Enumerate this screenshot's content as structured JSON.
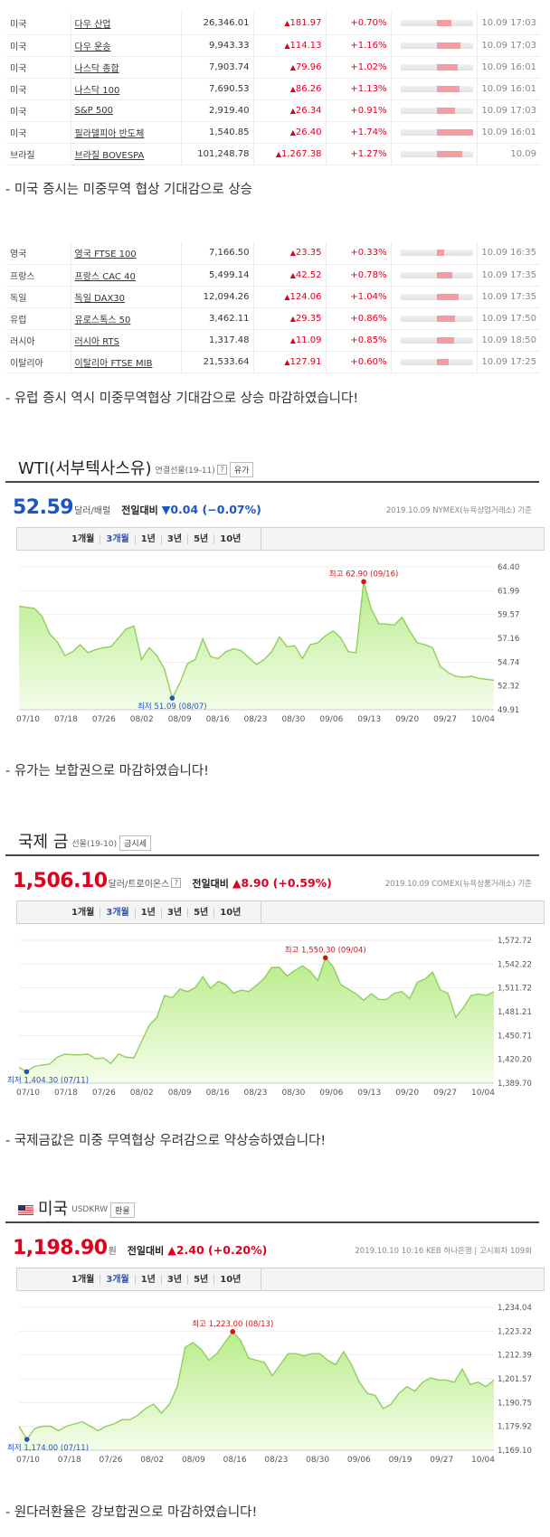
{
  "us_indices": [
    {
      "country": "미국",
      "name": "다우 산업",
      "price": "26,346.01",
      "change": "181.97",
      "rate": "+0.70%",
      "bar": 0.2,
      "time": "10.09 17:03"
    },
    {
      "country": "미국",
      "name": "다우 운송",
      "price": "9,943.33",
      "change": "114.13",
      "rate": "+1.16%",
      "bar": 0.33,
      "time": "10.09 17:03"
    },
    {
      "country": "미국",
      "name": "나스닥 종합",
      "price": "7,903.74",
      "change": "79.96",
      "rate": "+1.02%",
      "bar": 0.29,
      "time": "10.09 16:01"
    },
    {
      "country": "미국",
      "name": "나스닥 100",
      "price": "7,690.53",
      "change": "86.26",
      "rate": "+1.13%",
      "bar": 0.32,
      "time": "10.09 16:01"
    },
    {
      "country": "미국",
      "name": "S&P 500",
      "price": "2,919.40",
      "change": "26.34",
      "rate": "+0.91%",
      "bar": 0.26,
      "time": "10.09 17:03"
    },
    {
      "country": "미국",
      "name": "필라델피아 반도체",
      "price": "1,540.85",
      "change": "26.40",
      "rate": "+1.74%",
      "bar": 0.5,
      "time": "10.09 16:01"
    },
    {
      "country": "브라질",
      "name": "브라질 BOVESPA",
      "price": "101,248.78",
      "change": "1,267.38",
      "rate": "+1.27%",
      "bar": 0.36,
      "time": "10.09"
    }
  ],
  "caption_us": "- 미국 증시는 미중무역 협상 기대감으로 상승",
  "eu_indices": [
    {
      "country": "영국",
      "name": "영국 FTSE 100",
      "price": "7,166.50",
      "change": "23.35",
      "rate": "+0.33%",
      "bar": 0.1,
      "time": "10.09 16:35"
    },
    {
      "country": "프랑스",
      "name": "프랑스 CAC 40",
      "price": "5,499.14",
      "change": "42.52",
      "rate": "+0.78%",
      "bar": 0.22,
      "time": "10.09 17:35"
    },
    {
      "country": "독일",
      "name": "독일 DAX30",
      "price": "12,094.26",
      "change": "124.06",
      "rate": "+1.04%",
      "bar": 0.3,
      "time": "10.09 17:35"
    },
    {
      "country": "유럽",
      "name": "유로스톡스 50",
      "price": "3,462.11",
      "change": "29.35",
      "rate": "+0.86%",
      "bar": 0.25,
      "time": "10.09 17:50"
    },
    {
      "country": "러시아",
      "name": "러시아 RTS",
      "price": "1,317.48",
      "change": "11.09",
      "rate": "+0.85%",
      "bar": 0.24,
      "time": "10.09 18:50"
    },
    {
      "country": "이탈리아",
      "name": "이탈리아 FTSE MIB",
      "price": "21,533.64",
      "change": "127.91",
      "rate": "+0.60%",
      "bar": 0.17,
      "time": "10.09 17:25"
    }
  ],
  "caption_eu": "- 유럽 증시 역시 미중무역협상 기대감으로 상승 마감하였습니다!",
  "widgets": [
    {
      "title": "WTI(서부텍사스유)",
      "subtitle": "연결선물(19-11)",
      "help": "?",
      "chip": "유가",
      "price": "52.59",
      "unit": "달러/배럴",
      "cmp_label": "전일대비",
      "cmp": "▼0.04 (−0.07%)",
      "price_color": "#1a56c8",
      "cmp_color": "#1a56c8",
      "source": "2019.10.09  NYMEX(뉴욕상업거래소) 기준",
      "tabs": [
        "1개월",
        "3개월",
        "1년",
        "3년",
        "5년",
        "10년"
      ],
      "active_tab": 1,
      "high_label": "최고 62.90 (09/16)",
      "low_label": "최저 51.09 (08/07)",
      "chart_data": {
        "type": "area",
        "x_ticks": [
          "07/10",
          "07/18",
          "07/26",
          "08/02",
          "08/09",
          "08/16",
          "08/23",
          "08/30",
          "09/06",
          "09/13",
          "09/20",
          "09/27",
          "10/04"
        ],
        "y_ticks": [
          "64.40",
          "61.99",
          "59.57",
          "57.16",
          "54.74",
          "52.32",
          "49.91"
        ],
        "ylim": [
          49.91,
          64.4
        ],
        "values": [
          60.4,
          60.3,
          60.2,
          59.4,
          57.6,
          56.8,
          55.4,
          55.8,
          56.5,
          55.7,
          56.0,
          56.2,
          56.3,
          57.2,
          58.1,
          58.4,
          55.0,
          56.2,
          55.4,
          54.0,
          51.09,
          52.6,
          54.6,
          55.0,
          57.1,
          55.3,
          55.1,
          55.8,
          56.1,
          55.9,
          55.2,
          54.5,
          55.0,
          55.8,
          57.3,
          56.3,
          56.4,
          55.1,
          56.5,
          56.7,
          57.4,
          57.9,
          57.2,
          55.8,
          55.7,
          62.9,
          60.1,
          58.6,
          58.6,
          58.5,
          59.3,
          57.9,
          56.7,
          56.5,
          56.2,
          54.3,
          53.7,
          53.3,
          53.2,
          53.3,
          53.1,
          53.0,
          52.9
        ],
        "high_index": 45,
        "low_index": 20
      }
    },
    {
      "title": "국제 금",
      "subtitle": "선물(19-10)",
      "chip": "금시세",
      "price": "1,506.10",
      "unit": "달러/트로이온스",
      "help": "?",
      "cmp_label": "전일대비",
      "cmp": "▲8.90 (+0.59%)",
      "price_color": "#e0001e",
      "cmp_color": "#e0001e",
      "source": "2019.10.09  COMEX(뉴욕상품거래소) 기준",
      "tabs": [
        "1개월",
        "3개월",
        "1년",
        "3년",
        "5년",
        "10년"
      ],
      "active_tab": 1,
      "high_label": "최고 1,550.30 (09/04)",
      "low_label": "최저 1,404.30 (07/11)",
      "chart_data": {
        "type": "area",
        "x_ticks": [
          "07/10",
          "07/18",
          "07/26",
          "08/02",
          "08/09",
          "08/16",
          "08/23",
          "08/30",
          "09/06",
          "09/13",
          "09/20",
          "09/27",
          "10/04"
        ],
        "y_ticks": [
          "1,572.72",
          "1,542.22",
          "1,511.72",
          "1,481.21",
          "1,450.71",
          "1,420.20",
          "1,389.70"
        ],
        "ylim": [
          1389.7,
          1572.72
        ],
        "values": [
          1410,
          1404.3,
          1411,
          1413,
          1414,
          1423,
          1427,
          1426,
          1426,
          1427,
          1421,
          1422,
          1415,
          1427,
          1423,
          1422,
          1443,
          1464,
          1474,
          1502,
          1499,
          1510,
          1507,
          1512,
          1526,
          1511,
          1520,
          1516,
          1505,
          1509,
          1507,
          1515,
          1524,
          1538,
          1538,
          1527,
          1534,
          1540,
          1533,
          1521,
          1550.3,
          1539,
          1516,
          1510,
          1504,
          1496,
          1504,
          1497,
          1497,
          1505,
          1507,
          1498,
          1519,
          1523,
          1532,
          1509,
          1505,
          1474,
          1486,
          1502,
          1504,
          1502,
          1507
        ]
      }
    },
    {
      "title": "미국",
      "subtitle": "USDKRW",
      "chip": "환율",
      "price": "1,198.90",
      "unit": "원",
      "cmp_label": "전일대비",
      "cmp": "▲2.40 (+0.20%)",
      "price_color": "#e0001e",
      "cmp_color": "#e0001e",
      "source": "2019.10.10 10:16  KEB 하나은행 | 고시회차 109회",
      "tabs": [
        "1개월",
        "3개월",
        "1년",
        "3년",
        "5년",
        "10년"
      ],
      "active_tab": 1,
      "high_label": "최고 1,223.00 (08/13)",
      "low_label": "최저 1,174.00 (07/11)",
      "chart_data": {
        "type": "area",
        "x_ticks": [
          "07/10",
          "07/18",
          "07/26",
          "08/02",
          "08/09",
          "08/16",
          "08/23",
          "08/30",
          "09/06",
          "09/19",
          "09/27",
          "10/04"
        ],
        "y_ticks": [
          "1,234.04",
          "1,223.22",
          "1,212.39",
          "1,201.57",
          "1,190.75",
          "1,179.92",
          "1,169.10"
        ],
        "ylim": [
          1169.1,
          1234.04
        ],
        "values": [
          1180,
          1174.0,
          1179,
          1180,
          1180,
          1178,
          1180,
          1181,
          1182,
          1180,
          1178,
          1180,
          1181,
          1183,
          1183,
          1185,
          1188,
          1190,
          1186,
          1190,
          1198,
          1216,
          1218,
          1215,
          1210,
          1213,
          1218,
          1223,
          1219,
          1211,
          1210,
          1209,
          1203,
          1208,
          1213,
          1213,
          1212,
          1213,
          1213,
          1210,
          1208,
          1214,
          1208,
          1200,
          1195,
          1194,
          1188,
          1190,
          1195,
          1198,
          1196,
          1200,
          1202,
          1201,
          1201,
          1200,
          1206,
          1199,
          1200,
          1198,
          1201
        ]
      }
    }
  ],
  "caption_wti": "- 유가는 보합권으로 마감하였습니다!",
  "caption_gold": "- 국제금값은 미중 무역협상 우려감으로 약상승하였습니다!",
  "caption_fx": "- 원다러환율은 강보합권으로 마감하였습니다!"
}
